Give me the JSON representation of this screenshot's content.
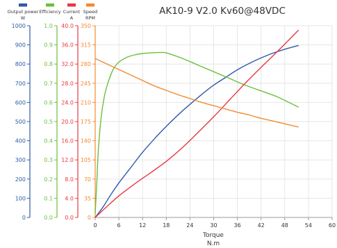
{
  "chart_data": {
    "type": "line",
    "title": "AK10-9 V2.0 Kv60@48VDC",
    "xlabel": "Torque",
    "xunit": "N.m",
    "xlim": [
      0,
      60
    ],
    "xticks": [
      "0",
      "6",
      "12",
      "18",
      "24",
      "30",
      "36",
      "42",
      "48",
      "54",
      "60"
    ],
    "grid": true,
    "legend_position": "top-left",
    "axes": [
      {
        "name": "Output power",
        "unit": "W",
        "color": "#2e5aa8",
        "ylim": [
          0,
          1000
        ],
        "ticks": [
          "0",
          "100",
          "200",
          "300",
          "400",
          "500",
          "600",
          "700",
          "800",
          "900",
          "1000"
        ]
      },
      {
        "name": "Efficiency",
        "unit": "",
        "color": "#6cbf3c",
        "ylim": [
          0,
          1
        ],
        "ticks": [
          "0.0",
          "0.1",
          "0.2",
          "0.3",
          "0.4",
          "0.5",
          "0.6",
          "0.7",
          "0.8",
          "0.9",
          "1.0"
        ]
      },
      {
        "name": "Current",
        "unit": "A",
        "color": "#e8383d",
        "ylim": [
          0,
          40
        ],
        "ticks": [
          "0.0",
          "4.0",
          "8.0",
          "12.0",
          "16.0",
          "20.0",
          "24.0",
          "28.0",
          "32.0",
          "36.0",
          "40.0"
        ]
      },
      {
        "name": "Speed",
        "unit": "RPM",
        "color": "#f28a30",
        "ylim": [
          0,
          350
        ],
        "ticks": [
          "0",
          "35",
          "70",
          "105",
          "140",
          "175",
          "210",
          "245",
          "280",
          "315",
          "350"
        ]
      }
    ],
    "series": [
      {
        "name": "Output power",
        "axis": 0,
        "color": "#2e5aa8",
        "x": [
          0,
          2,
          4,
          6,
          9,
          12,
          15,
          18,
          21,
          24,
          27,
          30,
          33,
          36,
          39,
          42,
          45,
          48,
          51.5
        ],
        "y": [
          0,
          55,
          120,
          180,
          260,
          340,
          410,
          475,
          535,
          590,
          642,
          690,
          730,
          770,
          803,
          832,
          857,
          877,
          897
        ]
      },
      {
        "name": "Efficiency",
        "axis": 1,
        "color": "#6cbf3c",
        "x": [
          0,
          0.4,
          0.8,
          1.5,
          2.3,
          3.2,
          4.5,
          6,
          8,
          10,
          12,
          14,
          16,
          17.5,
          19,
          22,
          26,
          30,
          34,
          38,
          42,
          46,
          51.5
        ],
        "y": [
          0.02,
          0.18,
          0.35,
          0.52,
          0.63,
          0.7,
          0.77,
          0.81,
          0.835,
          0.848,
          0.855,
          0.858,
          0.86,
          0.86,
          0.852,
          0.83,
          0.795,
          0.76,
          0.725,
          0.69,
          0.66,
          0.63,
          0.575
        ]
      },
      {
        "name": "Current",
        "axis": 2,
        "color": "#e8383d",
        "x": [
          0,
          3,
          6,
          10,
          14,
          18,
          22,
          26,
          30,
          34,
          38,
          42,
          46,
          51.5
        ],
        "y": [
          0,
          2.3,
          4.5,
          7,
          9.3,
          11.7,
          14.5,
          17.7,
          21,
          24.5,
          28,
          31.3,
          34.5,
          39.1
        ]
      },
      {
        "name": "Speed",
        "axis": 3,
        "color": "#f28a30",
        "x": [
          0,
          3,
          6,
          9,
          12,
          15,
          18,
          21,
          24,
          27,
          30,
          33,
          36,
          39,
          42,
          45,
          48,
          51.5
        ],
        "y": [
          290,
          280,
          270,
          260,
          250,
          240,
          232,
          224,
          217,
          210,
          204,
          198,
          192,
          187,
          181,
          176,
          171,
          165
        ]
      }
    ]
  }
}
